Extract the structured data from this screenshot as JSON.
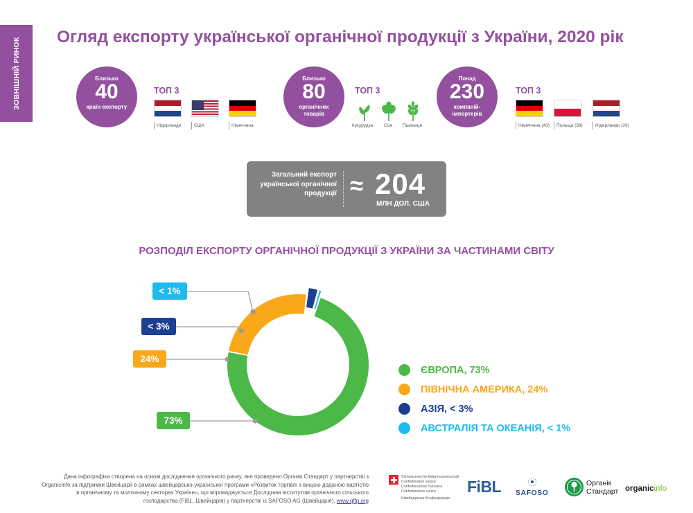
{
  "side_tab": {
    "label": "ЗОВНІШНІЙ РИНОК"
  },
  "page_title": "Огляд експорту української органічної продукції з України, 2020 рік",
  "stats": [
    {
      "pre": "Близько",
      "number": "40",
      "post": "країн експорту"
    },
    {
      "pre": "Близько",
      "number": "80",
      "post": "органічних товарів"
    },
    {
      "pre": "Понад",
      "number": "230",
      "post": "компаній-імпортерів"
    }
  ],
  "top3_label": "ТОП 3",
  "top_countries": [
    {
      "icon": "netherlands-flag-icon",
      "caption": "Нідерланди"
    },
    {
      "icon": "usa-flag-icon",
      "caption": "США"
    },
    {
      "icon": "germany-flag-icon",
      "caption": "Німеччина"
    }
  ],
  "top_products": [
    {
      "icon": "corn-plant-icon",
      "caption": "Кукурудза"
    },
    {
      "icon": "soy-plant-icon",
      "caption": "Соя"
    },
    {
      "icon": "wheat-plant-icon",
      "caption": "Пшениця"
    }
  ],
  "top_importers": [
    {
      "icon": "germany-flag-icon",
      "caption": "Німеччина (43)"
    },
    {
      "icon": "poland-flag-icon",
      "caption": "Польща (38)"
    },
    {
      "icon": "netherlands-flag-icon",
      "caption": "Нідерланди (26)"
    }
  ],
  "total_export": {
    "label": "Загальний експорт української органічної продукції",
    "approx_symbol": "≈",
    "value": "204",
    "unit": "МЛН ДОЛ. США"
  },
  "chart_data": {
    "type": "pie",
    "title": "РОЗПОДІЛ ЕКСПОРТУ ОРГАНІЧНОЇ ПРОДУКЦІЇ З УКРАЇНИ ЗА ЧАСТИНАМИ СВІТУ",
    "donut": true,
    "slices": [
      {
        "name": "ЄВРОПА, 73%",
        "value": 73,
        "label": "73%",
        "color": "#4cb848"
      },
      {
        "name": "ПІВНІЧНА АМЕРИКА, 24%",
        "value": 24,
        "label": "24%",
        "color": "#f9a81a"
      },
      {
        "name": "АЗІЯ, < 3%",
        "value": 2.3,
        "label": "< 3%",
        "color": "#1c3f94"
      },
      {
        "name": "АВСТРАЛІЯ ТА ОКЕАНІЯ, < 1%",
        "value": 0.7,
        "label": "< 1%",
        "color": "#1ebbee"
      }
    ],
    "legend_placement": "right"
  },
  "footer": {
    "note": "Дана інфографіка створена на основі дослідження органічного ринку, яке проведено Органік Стандарт у партнерстві з OrganicInfo за підтримки Швейцарії в рамках швейцарсько-української програми «Розвиток торгівлі з вищою доданою вартістю в органічному та молочному секторах України», що впроваджується Дослідним інститутом органічного сільського господарства (FiBL, Швейцарія) у партнерстві із SAFOSO AG (Швейцарія),",
    "link": "www.qftp.org"
  },
  "logos": {
    "swiss_lines": [
      "Schweizerische Eidgenossenschaft",
      "Confédération suisse",
      "Confederazione Svizzera",
      "Confederaziun svizra"
    ],
    "swiss_bottom": "Швейцарська Конфедерація",
    "fibl": "FiBL",
    "safoso": "SAFOSO",
    "organic_standard": [
      "Органік",
      "Стандарт"
    ],
    "organicinfo_main": "organic",
    "organicinfo_suffix": "info"
  },
  "colors": {
    "brand_purple": "#93509f",
    "europe": "#4cb848",
    "north_america": "#f9a81a",
    "asia": "#1c3f94",
    "oceania": "#1ebbee",
    "total_box": "#828282"
  }
}
